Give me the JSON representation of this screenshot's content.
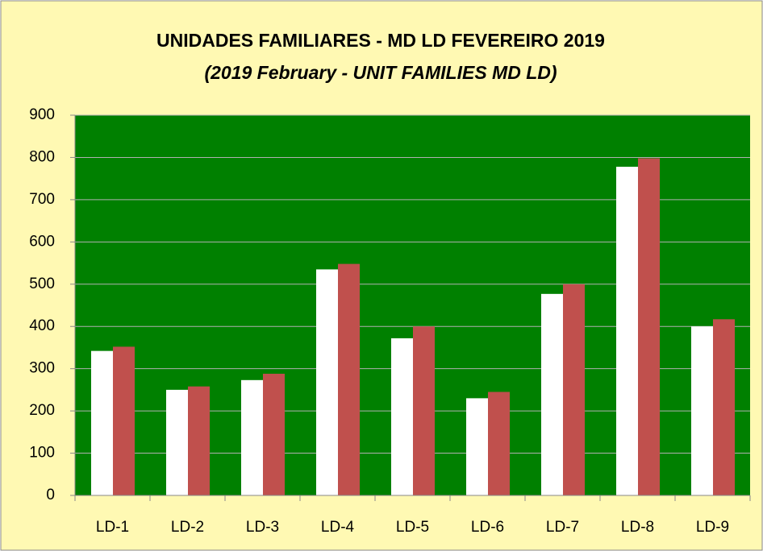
{
  "chart_data": {
    "type": "bar",
    "title": "UNIDADES FAMILIARES - MD LD FEVEREIRO 2019",
    "subtitle": "(2019 February - UNIT FAMILIES MD LD)",
    "categories": [
      "LD-1",
      "LD-2",
      "LD-3",
      "LD-4",
      "LD-5",
      "LD-6",
      "LD-7",
      "LD-8",
      "LD-9"
    ],
    "series": [
      {
        "color": "#ffffff",
        "values": [
          342,
          250,
          273,
          535,
          372,
          230,
          477,
          778,
          400
        ]
      },
      {
        "color": "#c0504d",
        "values": [
          352,
          258,
          288,
          548,
          400,
          245,
          500,
          798,
          417
        ]
      }
    ],
    "ylim": [
      0,
      900
    ],
    "yticks": [
      0,
      100,
      200,
      300,
      400,
      500,
      600,
      700,
      800,
      900
    ],
    "grid": true,
    "plot_background": "#008000",
    "background": "#fff9b3"
  }
}
